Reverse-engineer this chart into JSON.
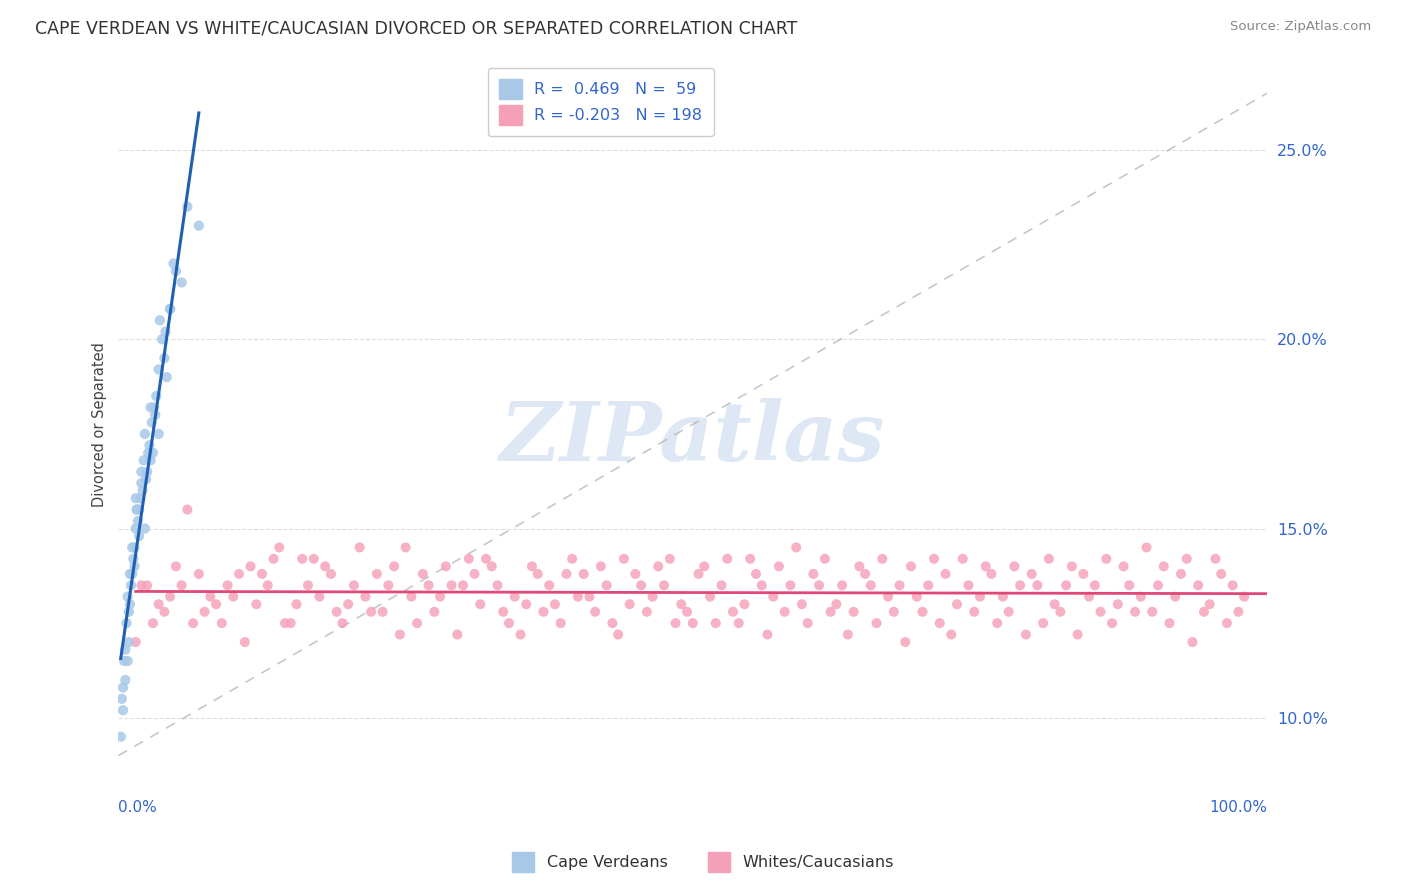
{
  "title": "CAPE VERDEAN VS WHITE/CAUCASIAN DIVORCED OR SEPARATED CORRELATION CHART",
  "source": "Source: ZipAtlas.com",
  "ylabel": "Divorced or Separated",
  "xlim": [
    0,
    100
  ],
  "ylim": [
    8.5,
    27.0
  ],
  "yticks": [
    10.0,
    15.0,
    20.0,
    25.0
  ],
  "ytick_labels": [
    "10.0%",
    "15.0%",
    "20.0%",
    "25.0%"
  ],
  "blue_color": "#a8c8e8",
  "pink_color": "#f4a0b8",
  "blue_line_color": "#2060b0",
  "pink_line_color": "#e04878",
  "dashed_color": "#aaaaaa",
  "watermark": "ZIPatlas",
  "watermark_color": "#dde8f4",
  "legend_text_color": "#3366cc",
  "bottom_legend": [
    "Cape Verdeans",
    "Whites/Caucasians"
  ],
  "grid_color": "#dddddd",
  "title_color": "#333333",
  "axis_label_color": "#3366cc",
  "cv_x": [
    0.3,
    0.4,
    0.5,
    0.6,
    0.7,
    0.8,
    0.9,
    1.0,
    1.1,
    1.2,
    1.3,
    1.4,
    1.5,
    1.6,
    1.7,
    1.8,
    1.9,
    2.0,
    2.1,
    2.2,
    2.3,
    2.4,
    2.5,
    2.6,
    2.7,
    2.8,
    2.9,
    3.0,
    3.1,
    3.2,
    3.3,
    3.5,
    3.6,
    3.8,
    4.0,
    4.1,
    4.2,
    4.5,
    4.8,
    5.0,
    5.5,
    6.0,
    0.2,
    0.4,
    0.6,
    0.8,
    1.0,
    1.2,
    1.4,
    1.5,
    1.8,
    2.0,
    2.8,
    3.5,
    4.5,
    0.9,
    1.6,
    2.3,
    7.0
  ],
  "cv_y": [
    10.5,
    10.8,
    11.5,
    11.0,
    12.5,
    13.2,
    12.0,
    13.0,
    13.5,
    14.5,
    14.2,
    14.0,
    15.8,
    15.5,
    15.2,
    14.8,
    15.8,
    16.2,
    16.0,
    16.8,
    15.0,
    16.3,
    16.5,
    17.0,
    17.2,
    16.8,
    17.8,
    17.0,
    18.2,
    18.0,
    18.5,
    19.2,
    20.5,
    20.0,
    19.5,
    20.2,
    19.0,
    20.8,
    22.0,
    21.8,
    21.5,
    23.5,
    9.5,
    10.2,
    11.8,
    11.5,
    13.8,
    13.8,
    14.5,
    15.0,
    15.5,
    16.5,
    18.2,
    17.5,
    20.8,
    12.8,
    15.5,
    17.5,
    23.0
  ],
  "wc_x": [
    1.5,
    2.0,
    2.5,
    3.0,
    3.5,
    4.0,
    4.5,
    5.0,
    5.5,
    6.0,
    6.5,
    7.0,
    7.5,
    8.0,
    8.5,
    9.0,
    9.5,
    10.0,
    10.5,
    11.0,
    11.5,
    12.0,
    12.5,
    13.0,
    13.5,
    14.0,
    14.5,
    15.0,
    15.5,
    16.0,
    16.5,
    17.0,
    17.5,
    18.0,
    18.5,
    19.0,
    19.5,
    20.0,
    20.5,
    21.0,
    21.5,
    22.0,
    22.5,
    23.0,
    23.5,
    24.0,
    24.5,
    25.0,
    25.5,
    26.0,
    26.5,
    27.0,
    27.5,
    28.0,
    28.5,
    29.0,
    29.5,
    30.0,
    30.5,
    31.0,
    31.5,
    32.0,
    32.5,
    33.0,
    33.5,
    34.0,
    34.5,
    35.0,
    35.5,
    36.0,
    36.5,
    37.0,
    37.5,
    38.0,
    38.5,
    39.0,
    39.5,
    40.0,
    40.5,
    41.0,
    41.5,
    42.0,
    42.5,
    43.0,
    43.5,
    44.0,
    44.5,
    45.0,
    45.5,
    46.0,
    46.5,
    47.0,
    47.5,
    48.0,
    48.5,
    49.0,
    49.5,
    50.0,
    50.5,
    51.0,
    51.5,
    52.0,
    52.5,
    53.0,
    53.5,
    54.0,
    54.5,
    55.0,
    55.5,
    56.0,
    56.5,
    57.0,
    57.5,
    58.0,
    58.5,
    59.0,
    59.5,
    60.0,
    60.5,
    61.0,
    61.5,
    62.0,
    62.5,
    63.0,
    63.5,
    64.0,
    64.5,
    65.0,
    65.5,
    66.0,
    66.5,
    67.0,
    67.5,
    68.0,
    68.5,
    69.0,
    69.5,
    70.0,
    70.5,
    71.0,
    71.5,
    72.0,
    72.5,
    73.0,
    73.5,
    74.0,
    74.5,
    75.0,
    75.5,
    76.0,
    76.5,
    77.0,
    77.5,
    78.0,
    78.5,
    79.0,
    79.5,
    80.0,
    80.5,
    81.0,
    81.5,
    82.0,
    82.5,
    83.0,
    83.5,
    84.0,
    84.5,
    85.0,
    85.5,
    86.0,
    86.5,
    87.0,
    87.5,
    88.0,
    88.5,
    89.0,
    89.5,
    90.0,
    90.5,
    91.0,
    91.5,
    92.0,
    92.5,
    93.0,
    93.5,
    94.0,
    94.5,
    95.0,
    95.5,
    96.0,
    96.5,
    97.0,
    97.5,
    98.0
  ],
  "wc_y": [
    12.0,
    13.5,
    13.5,
    12.5,
    13.0,
    12.8,
    13.2,
    14.0,
    13.5,
    15.5,
    12.5,
    13.8,
    12.8,
    13.2,
    13.0,
    12.5,
    13.5,
    13.2,
    13.8,
    12.0,
    14.0,
    13.0,
    13.8,
    13.5,
    14.2,
    14.5,
    12.5,
    12.5,
    13.0,
    14.2,
    13.5,
    14.2,
    13.2,
    14.0,
    13.8,
    12.8,
    12.5,
    13.0,
    13.5,
    14.5,
    13.2,
    12.8,
    13.8,
    12.8,
    13.5,
    14.0,
    12.2,
    14.5,
    13.2,
    12.5,
    13.8,
    13.5,
    12.8,
    13.2,
    14.0,
    13.5,
    12.2,
    13.5,
    14.2,
    13.8,
    13.0,
    14.2,
    14.0,
    13.5,
    12.8,
    12.5,
    13.2,
    12.2,
    13.0,
    14.0,
    13.8,
    12.8,
    13.5,
    13.0,
    12.5,
    13.8,
    14.2,
    13.2,
    13.8,
    13.2,
    12.8,
    14.0,
    13.5,
    12.5,
    12.2,
    14.2,
    13.0,
    13.8,
    13.5,
    12.8,
    13.2,
    14.0,
    13.5,
    14.2,
    12.5,
    13.0,
    12.8,
    12.5,
    13.8,
    14.0,
    13.2,
    12.5,
    13.5,
    14.2,
    12.8,
    12.5,
    13.0,
    14.2,
    13.8,
    13.5,
    12.2,
    13.2,
    14.0,
    12.8,
    13.5,
    14.5,
    13.0,
    12.5,
    13.8,
    13.5,
    14.2,
    12.8,
    13.0,
    13.5,
    12.2,
    12.8,
    14.0,
    13.8,
    13.5,
    12.5,
    14.2,
    13.2,
    12.8,
    13.5,
    12.0,
    14.0,
    13.2,
    12.8,
    13.5,
    14.2,
    12.5,
    13.8,
    12.2,
    13.0,
    14.2,
    13.5,
    12.8,
    13.2,
    14.0,
    13.8,
    12.5,
    13.2,
    12.8,
    14.0,
    13.5,
    12.2,
    13.8,
    13.5,
    12.5,
    14.2,
    13.0,
    12.8,
    13.5,
    14.0,
    12.2,
    13.8,
    13.2,
    13.5,
    12.8,
    14.2,
    12.5,
    13.0,
    14.0,
    13.5,
    12.8,
    13.2,
    14.5,
    12.8,
    13.5,
    14.0,
    12.5,
    13.2,
    13.8,
    14.2,
    12.0,
    13.5,
    12.8,
    13.0,
    14.2,
    13.8,
    12.5,
    13.5,
    12.8,
    13.2
  ]
}
